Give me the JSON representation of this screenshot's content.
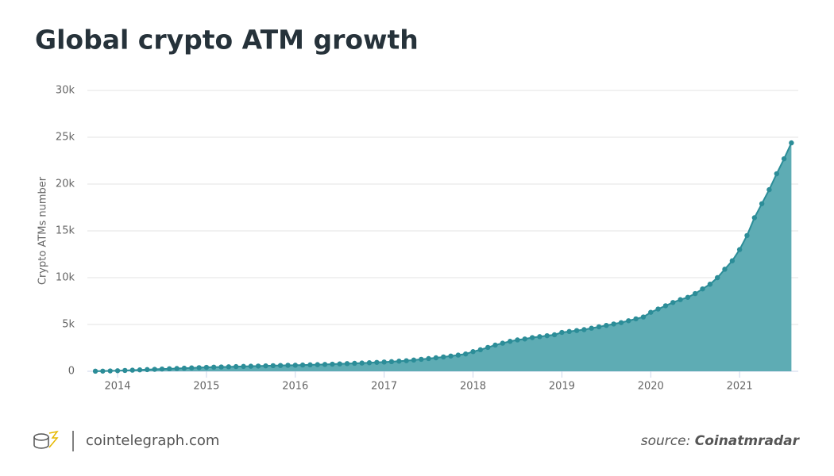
{
  "chart_data": {
    "type": "area",
    "title": "Global crypto ATM growth",
    "y_label": "Crypto ATMs number",
    "x": [
      2013.75,
      2013.833,
      2013.917,
      2014,
      2014.083,
      2014.167,
      2014.25,
      2014.333,
      2014.417,
      2014.5,
      2014.583,
      2014.667,
      2014.75,
      2014.833,
      2014.917,
      2015,
      2015.083,
      2015.167,
      2015.25,
      2015.333,
      2015.417,
      2015.5,
      2015.583,
      2015.667,
      2015.75,
      2015.833,
      2015.917,
      2016,
      2016.083,
      2016.167,
      2016.25,
      2016.333,
      2016.417,
      2016.5,
      2016.583,
      2016.667,
      2016.75,
      2016.833,
      2016.917,
      2017,
      2017.083,
      2017.167,
      2017.25,
      2017.333,
      2017.417,
      2017.5,
      2017.583,
      2017.667,
      2017.75,
      2017.833,
      2017.917,
      2018,
      2018.083,
      2018.167,
      2018.25,
      2018.333,
      2018.417,
      2018.5,
      2018.583,
      2018.667,
      2018.75,
      2018.833,
      2018.917,
      2019,
      2019.083,
      2019.167,
      2019.25,
      2019.333,
      2019.417,
      2019.5,
      2019.583,
      2019.667,
      2019.75,
      2019.833,
      2019.917,
      2020,
      2020.083,
      2020.167,
      2020.25,
      2020.333,
      2020.417,
      2020.5,
      2020.583,
      2020.667,
      2020.75,
      2020.833,
      2020.917,
      2021,
      2021.083,
      2021.167,
      2021.25,
      2021.333,
      2021.417,
      2021.5,
      2021.583
    ],
    "series": [
      {
        "name": "Crypto ATMs",
        "color": "#2c8d98",
        "fill": "#5eacb4",
        "values": [
          10,
          20,
          40,
          60,
          90,
          120,
          150,
          180,
          210,
          240,
          270,
          300,
          330,
          360,
          390,
          420,
          440,
          460,
          480,
          500,
          520,
          540,
          560,
          580,
          600,
          620,
          640,
          650,
          670,
          690,
          710,
          730,
          760,
          790,
          820,
          850,
          880,
          910,
          950,
          990,
          1030,
          1080,
          1130,
          1200,
          1280,
          1360,
          1440,
          1530,
          1630,
          1730,
          1850,
          2100,
          2300,
          2550,
          2800,
          3000,
          3200,
          3350,
          3450,
          3600,
          3700,
          3800,
          3900,
          4150,
          4250,
          4350,
          4450,
          4600,
          4750,
          4900,
          5050,
          5200,
          5400,
          5600,
          5800,
          6300,
          6650,
          7000,
          7350,
          7650,
          7900,
          8300,
          8800,
          9300,
          10000,
          10900,
          11800,
          13000,
          14500,
          16400,
          17900,
          19400,
          21100,
          22700,
          24400
        ]
      }
    ],
    "xlim": [
      2013.66,
      2021.66
    ],
    "xticks": [
      2014,
      2015,
      2016,
      2017,
      2018,
      2019,
      2020,
      2021
    ],
    "ylim": [
      0,
      30000
    ],
    "yticks": [
      0,
      {
        "value": 5000,
        "label": "5k"
      },
      {
        "value": 10000,
        "label": "10k"
      },
      {
        "value": 15000,
        "label": "15k"
      },
      {
        "value": 20000,
        "label": "20k"
      },
      {
        "value": 25000,
        "label": "25k"
      },
      {
        "value": 30000,
        "label": "30k"
      }
    ],
    "grid": true
  },
  "footer": {
    "brand": "cointelegraph.com",
    "source_label": "source:",
    "source_name": "Coinatmradar"
  }
}
